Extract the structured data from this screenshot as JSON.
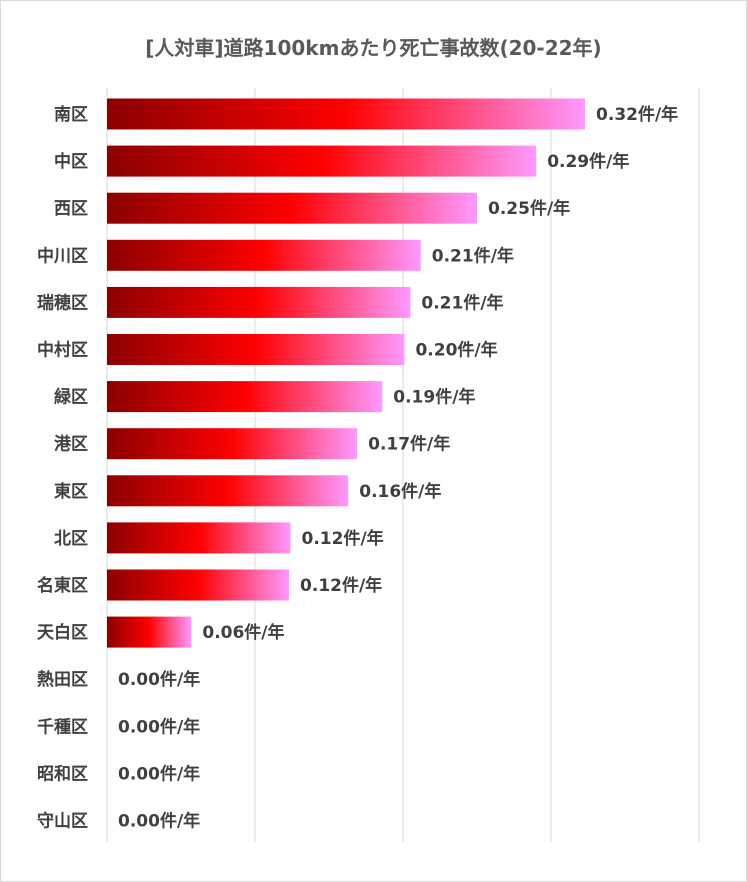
{
  "chart_data": {
    "type": "bar",
    "orientation": "horizontal",
    "title": "[人対車]道路100kmあたり死亡事故数(20-22年)",
    "categories": [
      "南区",
      "中区",
      "西区",
      "中川区",
      "瑞穂区",
      "中村区",
      "緑区",
      "港区",
      "東区",
      "北区",
      "名東区",
      "天白区",
      "熱田区",
      "千種区",
      "昭和区",
      "守山区"
    ],
    "values": [
      0.32,
      0.29,
      0.25,
      0.21,
      0.21,
      0.2,
      0.19,
      0.17,
      0.16,
      0.12,
      0.12,
      0.06,
      0.0,
      0.0,
      0.0,
      0.0
    ],
    "bar_extent": [
      0.323,
      0.29,
      0.25,
      0.212,
      0.205,
      0.201,
      0.186,
      0.169,
      0.163,
      0.124,
      0.123,
      0.057,
      0,
      0,
      0,
      0
    ],
    "value_labels": [
      "0.32件/年",
      "0.29件/年",
      "0.25件/年",
      "0.21件/年",
      "0.21件/年",
      "0.20件/年",
      "0.19件/年",
      "0.17件/年",
      "0.16件/年",
      "0.12件/年",
      "0.12件/年",
      "0.06件/年",
      "0.00件/年",
      "0.00件/年",
      "0.00件/年",
      "0.00件/年"
    ],
    "xlim": [
      0,
      0.4
    ],
    "x_gridlines": [
      0,
      0.1,
      0.2,
      0.3,
      0.4
    ],
    "grid": true,
    "colors": {
      "gradient_start": "#8b0000",
      "gradient_mid": "#ff0000",
      "gradient_end": "#ff99ff",
      "grid": "#d9d9d9",
      "text": "#404040"
    }
  }
}
